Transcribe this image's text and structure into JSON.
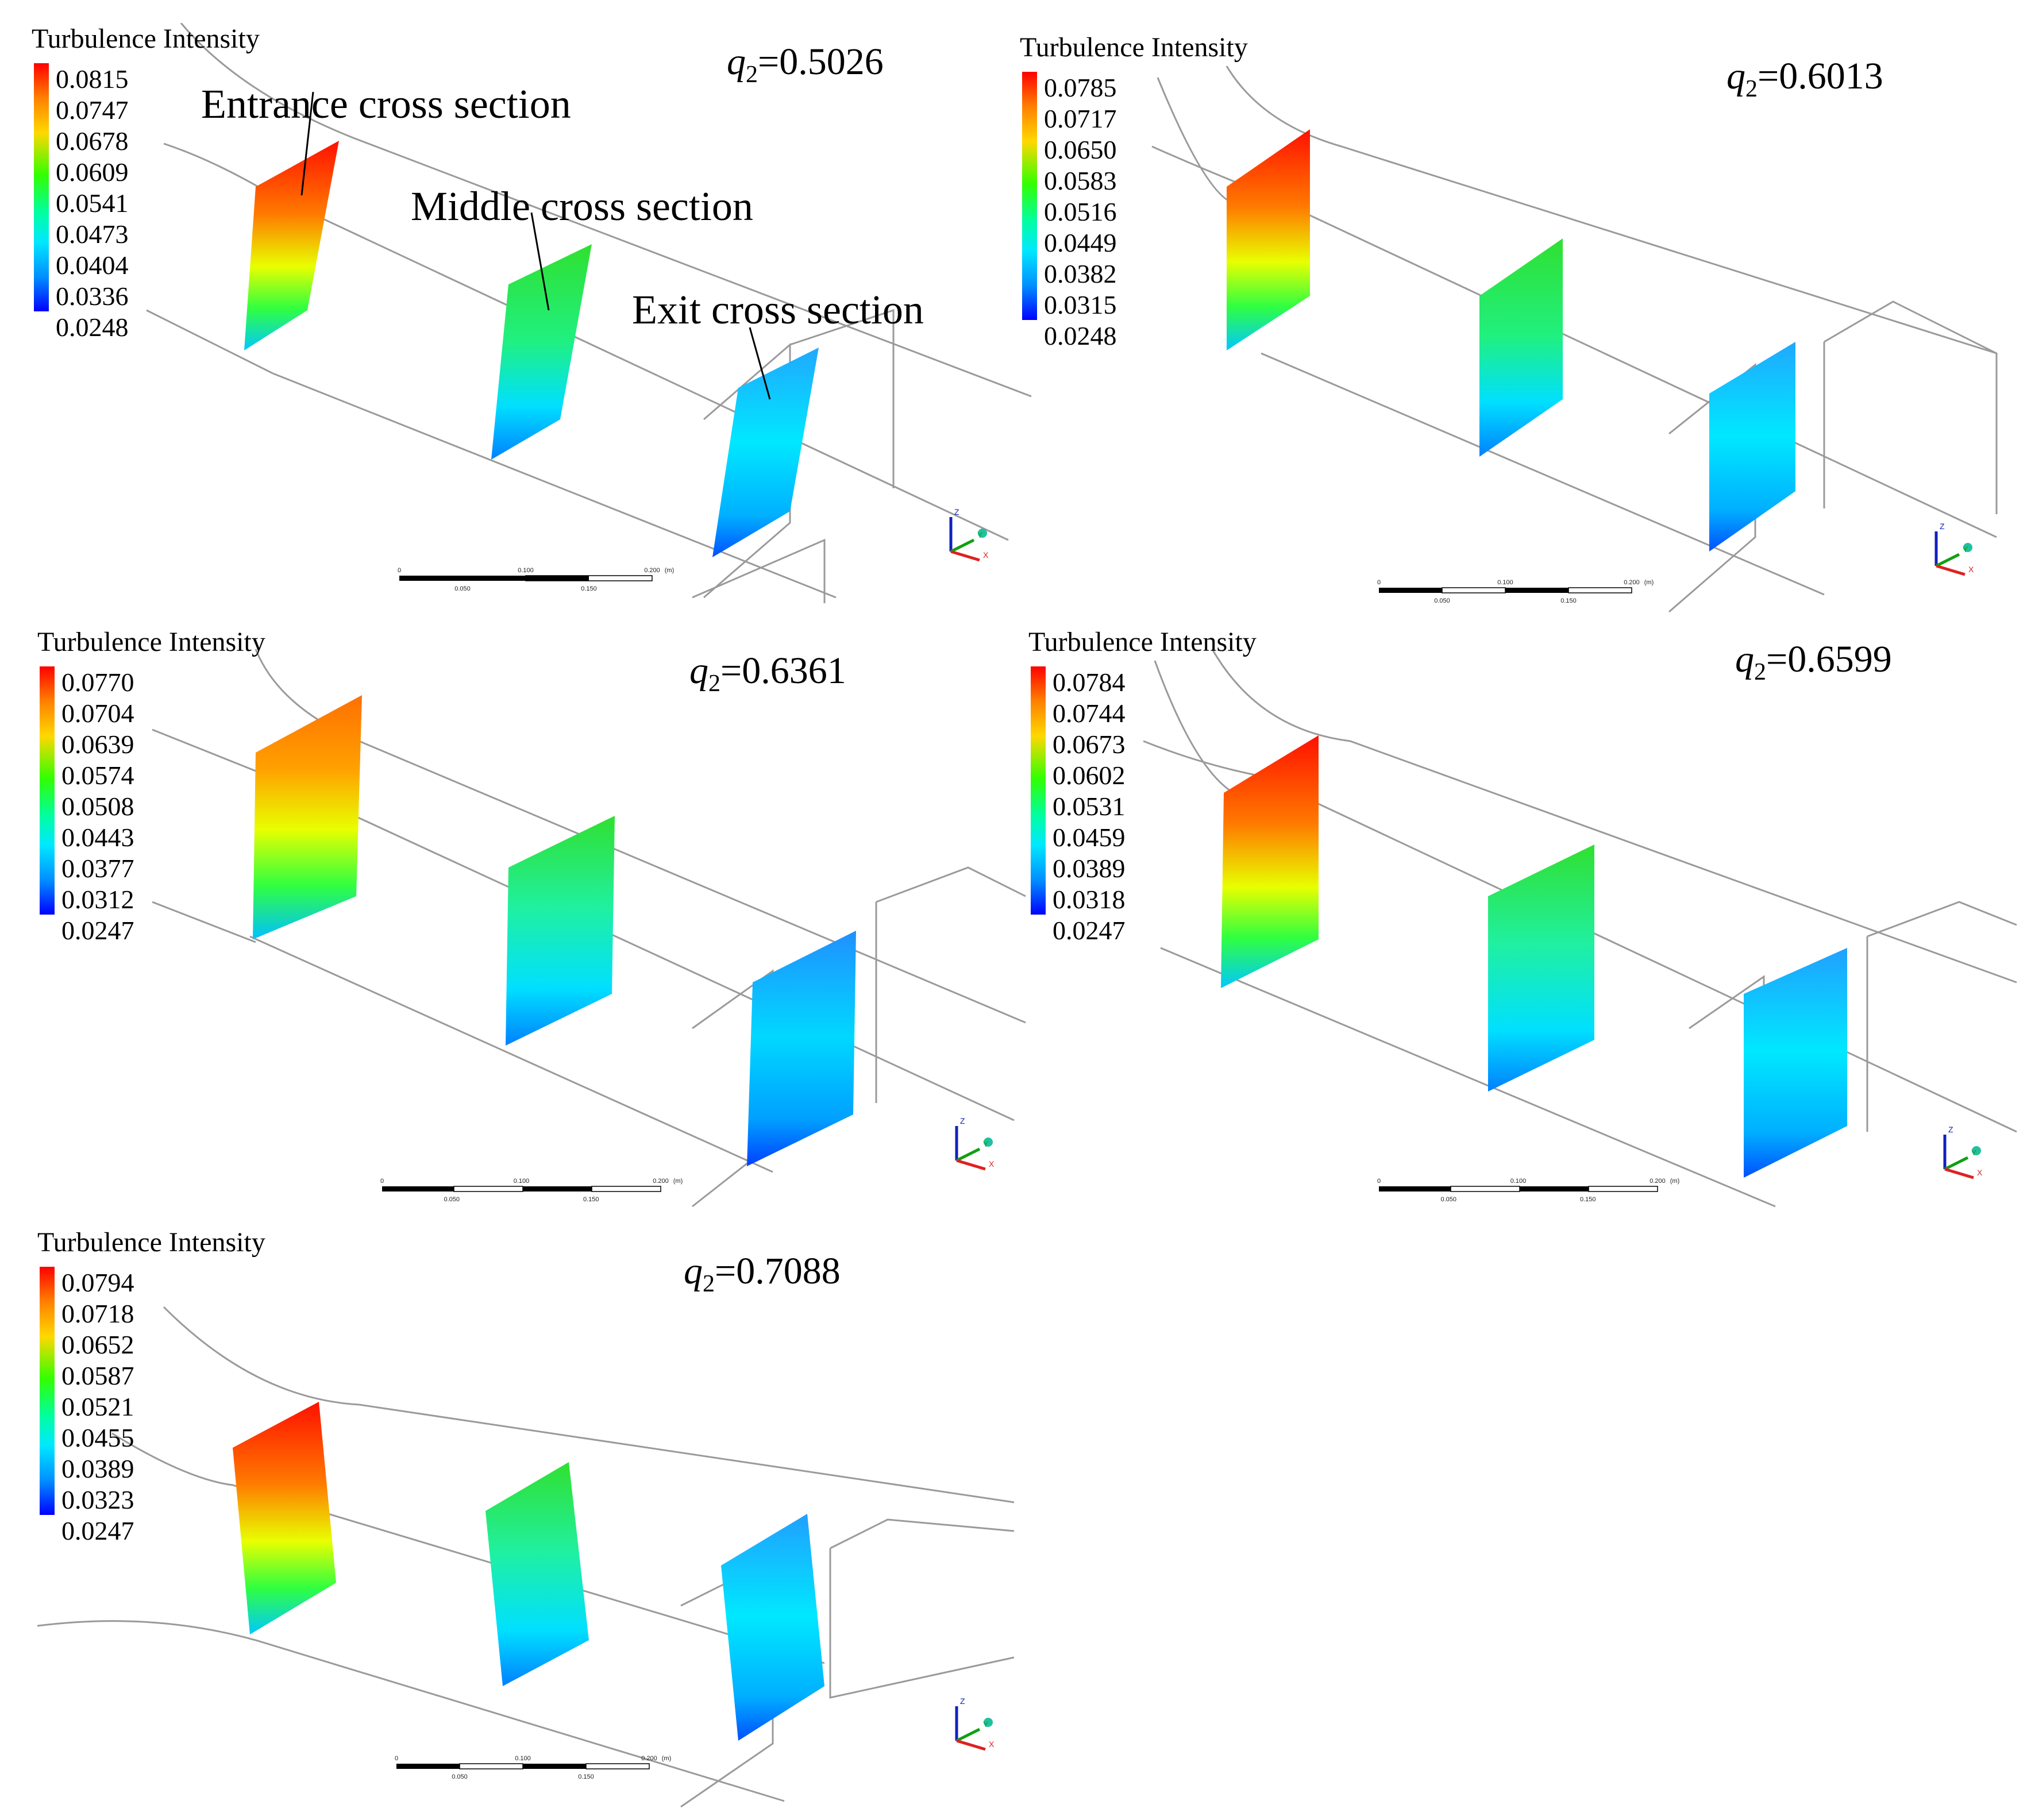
{
  "panels": [
    {
      "legend_title": "Turbulence Intensity",
      "ticks": [
        "0.0815",
        "0.0747",
        "0.0678",
        "0.0609",
        "0.0541",
        "0.0473",
        "0.0404",
        "0.0336",
        "0.0248"
      ],
      "q_symbol": "q",
      "q_sub": "2",
      "q_value": "=0.5026",
      "callouts": {
        "entrance": "Entrance cross section",
        "middle": "Middle cross section",
        "exit": "Exit cross section"
      }
    },
    {
      "legend_title": "Turbulence Intensity",
      "ticks": [
        "0.0785",
        "0.0717",
        "0.0650",
        "0.0583",
        "0.0516",
        "0.0449",
        "0.0382",
        "0.0315",
        "0.0248"
      ],
      "q_symbol": "q",
      "q_sub": "2",
      "q_value": "=0.6013"
    },
    {
      "legend_title": "Turbulence Intensity",
      "ticks": [
        "0.0770",
        "0.0704",
        "0.0639",
        "0.0574",
        "0.0508",
        "0.0443",
        "0.0377",
        "0.0312",
        "0.0247"
      ],
      "q_symbol": "q",
      "q_sub": "2",
      "q_value": "=0.6361"
    },
    {
      "legend_title": "Turbulence Intensity",
      "ticks": [
        "0.0784",
        "0.0744",
        "0.0673",
        "0.0602",
        "0.0531",
        "0.0459",
        "0.0389",
        "0.0318",
        "0.0247"
      ],
      "q_symbol": "q",
      "q_sub": "2",
      "q_value": "=0.6599"
    },
    {
      "legend_title": "Turbulence Intensity",
      "ticks": [
        "0.0794",
        "0.0718",
        "0.0652",
        "0.0587",
        "0.0521",
        "0.0455",
        "0.0389",
        "0.0323",
        "0.0247"
      ],
      "q_symbol": "q",
      "q_sub": "2",
      "q_value": "=0.7088"
    }
  ],
  "scale_bar": {
    "labels_top": [
      "0",
      "0.100",
      "0.200",
      "(m)"
    ],
    "labels_bottom": [
      "0.050",
      "0.150"
    ]
  },
  "axes": {
    "z": "Z",
    "y": "Y",
    "x": "X"
  },
  "colors": {
    "high": "#ff0000",
    "mid": "#00ff40",
    "low": "#0000ff",
    "wireframe": "#9a9a9a"
  }
}
